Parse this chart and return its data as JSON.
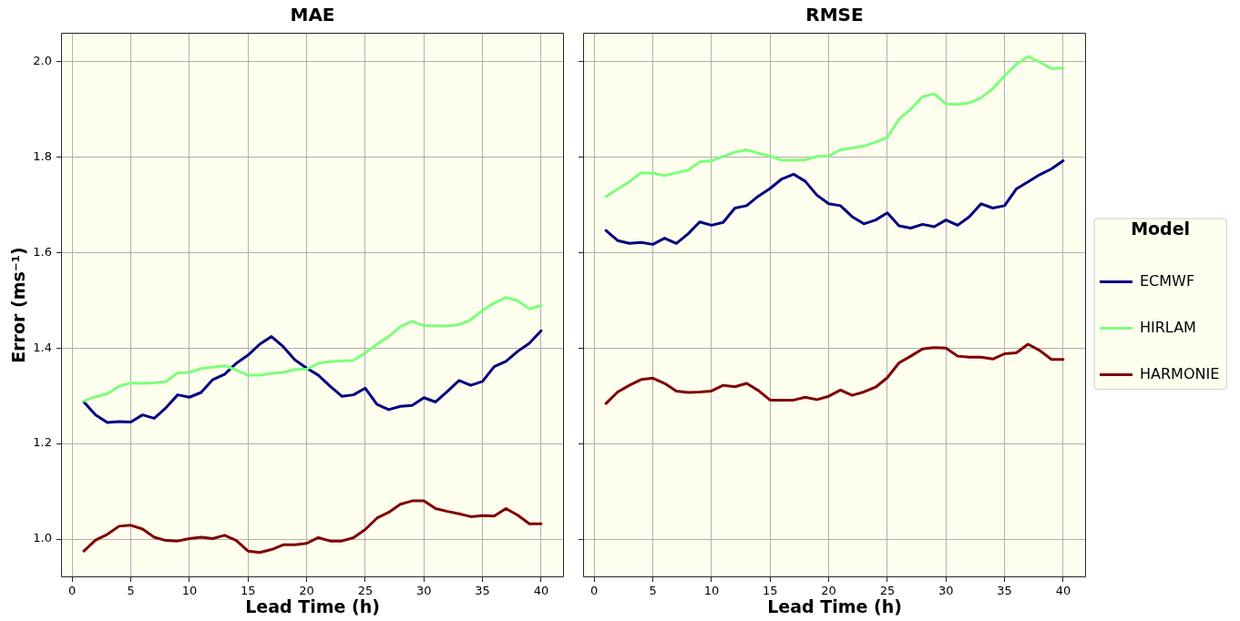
{
  "chart_data": [
    {
      "type": "line",
      "title": "MAE",
      "xlabel": "Lead Time (h)",
      "ylabel": "Error (ms⁻¹)",
      "x": [
        1,
        2,
        3,
        4,
        5,
        6,
        7,
        8,
        9,
        10,
        11,
        12,
        13,
        14,
        15,
        16,
        17,
        18,
        19,
        20,
        21,
        22,
        23,
        24,
        25,
        26,
        27,
        28,
        29,
        30,
        31,
        32,
        33,
        34,
        35,
        36,
        37,
        38,
        39,
        40
      ],
      "series": [
        {
          "color": "#000080",
          "values": [
            1.287,
            1.26,
            1.244,
            1.246,
            1.245,
            1.26,
            1.253,
            1.275,
            1.302,
            1.297,
            1.307,
            1.334,
            1.345,
            1.368,
            1.385,
            1.408,
            1.424,
            1.403,
            1.375,
            1.358,
            1.343,
            1.32,
            1.299,
            1.302,
            1.316,
            1.282,
            1.271,
            1.278,
            1.28,
            1.296,
            1.287,
            1.309,
            1.332,
            1.322,
            1.33,
            1.361,
            1.372,
            1.393,
            1.41,
            1.436
          ]
        },
        {
          "color": "#7dff7a",
          "values": [
            1.289,
            1.298,
            1.304,
            1.32,
            1.327,
            1.326,
            1.327,
            1.33,
            1.348,
            1.349,
            1.357,
            1.36,
            1.363,
            1.354,
            1.343,
            1.343,
            1.347,
            1.349,
            1.355,
            1.356,
            1.368,
            1.372,
            1.373,
            1.374,
            1.39,
            1.408,
            1.424,
            1.445,
            1.456,
            1.447,
            1.446,
            1.446,
            1.449,
            1.459,
            1.479,
            1.494,
            1.506,
            1.499,
            1.482,
            1.489
          ]
        },
        {
          "color": "#800000",
          "values": [
            0.975,
            0.998,
            1.01,
            1.027,
            1.029,
            1.021,
            1.004,
            0.997,
            0.996,
            1.001,
            1.004,
            1.001,
            1.008,
            0.997,
            0.975,
            0.972,
            0.978,
            0.988,
            0.988,
            0.991,
            1.003,
            0.996,
            0.996,
            1.003,
            1.02,
            1.044,
            1.056,
            1.073,
            1.08,
            1.08,
            1.064,
            1.058,
            1.053,
            1.047,
            1.049,
            1.048,
            1.064,
            1.05,
            1.032,
            1.032
          ]
        }
      ],
      "xlim": [
        -0.95,
        41.95
      ],
      "xticks": [
        0,
        5,
        10,
        15,
        20,
        25,
        30,
        35,
        40
      ],
      "ylim": [
        0.92,
        2.06
      ],
      "yticks": [
        {
          "value": 1.0,
          "label": "1.0"
        },
        {
          "value": 1.2,
          "label": "1.2"
        },
        {
          "value": 1.4,
          "label": "1.4"
        },
        {
          "value": 1.6,
          "label": "1.6"
        },
        {
          "value": 1.8,
          "label": "1.8"
        },
        {
          "value": 2.0,
          "label": "2.0"
        }
      ],
      "grid": true
    },
    {
      "type": "line",
      "title": "RMSE",
      "xlabel": "Lead Time (h)",
      "x": [
        1,
        2,
        3,
        4,
        5,
        6,
        7,
        8,
        9,
        10,
        11,
        12,
        13,
        14,
        15,
        16,
        17,
        18,
        19,
        20,
        21,
        22,
        23,
        24,
        25,
        26,
        27,
        28,
        29,
        30,
        31,
        32,
        33,
        34,
        35,
        36,
        37,
        38,
        39,
        40
      ],
      "series": [
        {
          "name": "ECMWF",
          "color": "#000080",
          "values": [
            1.646,
            1.625,
            1.619,
            1.621,
            1.617,
            1.63,
            1.619,
            1.639,
            1.664,
            1.657,
            1.663,
            1.693,
            1.698,
            1.718,
            1.734,
            1.754,
            1.764,
            1.749,
            1.72,
            1.702,
            1.698,
            1.675,
            1.66,
            1.668,
            1.683,
            1.656,
            1.651,
            1.659,
            1.654,
            1.668,
            1.657,
            1.675,
            1.702,
            1.693,
            1.698,
            1.733,
            1.748,
            1.763,
            1.775,
            1.792
          ]
        },
        {
          "name": "HIRLAM",
          "color": "#7dff7a",
          "values": [
            1.717,
            1.733,
            1.748,
            1.767,
            1.766,
            1.761,
            1.767,
            1.772,
            1.79,
            1.792,
            1.801,
            1.81,
            1.815,
            1.808,
            1.802,
            1.793,
            1.793,
            1.794,
            1.801,
            1.802,
            1.815,
            1.819,
            1.823,
            1.831,
            1.841,
            1.879,
            1.9,
            1.926,
            1.932,
            1.911,
            1.91,
            1.913,
            1.924,
            1.943,
            1.97,
            1.994,
            2.01,
            1.999,
            1.985,
            1.986
          ]
        },
        {
          "name": "HARMONIE",
          "color": "#800000",
          "values": [
            1.284,
            1.308,
            1.322,
            1.334,
            1.337,
            1.326,
            1.31,
            1.307,
            1.308,
            1.31,
            1.322,
            1.319,
            1.326,
            1.311,
            1.291,
            1.291,
            1.291,
            1.297,
            1.292,
            1.299,
            1.312,
            1.301,
            1.308,
            1.318,
            1.338,
            1.369,
            1.383,
            1.398,
            1.401,
            1.4,
            1.383,
            1.381,
            1.381,
            1.377,
            1.388,
            1.39,
            1.408,
            1.395,
            1.376,
            1.376
          ]
        }
      ],
      "xlim": [
        -0.95,
        41.95
      ],
      "xticks": [
        0,
        5,
        10,
        15,
        20,
        25,
        30,
        35,
        40
      ],
      "ylim": [
        0.92,
        2.06
      ],
      "yticks": [
        1,
        1.2,
        1.4,
        1.6,
        1.8,
        2
      ],
      "tick_labels": "x",
      "grid": true,
      "legend": "right",
      "legend_title": "Model"
    }
  ]
}
